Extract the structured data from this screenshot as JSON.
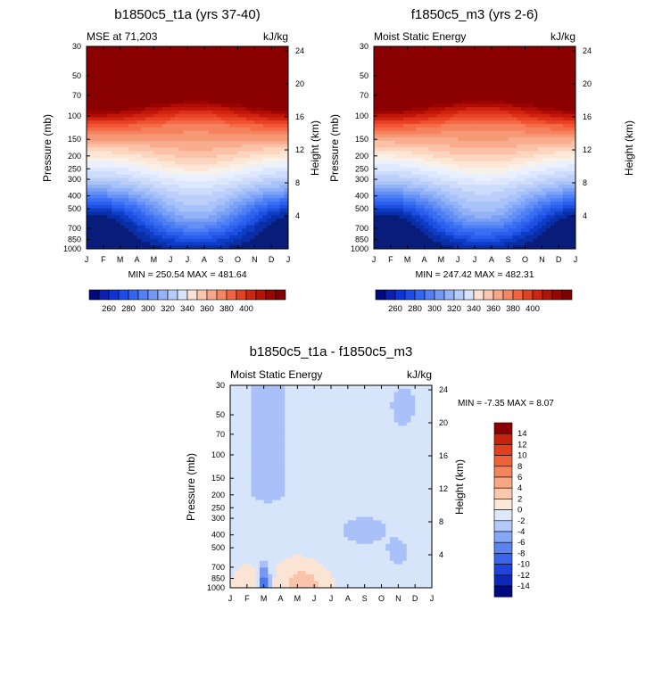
{
  "chart_data": [
    {
      "type": "contour",
      "title": "b1850c5_t1a (yrs 37-40)",
      "left_label": "MSE at 71,203",
      "units": "kJ/kg",
      "ylabel": "Pressure (mb)",
      "y2label": "Height (km)",
      "x_ticks": [
        "J",
        "F",
        "M",
        "A",
        "M",
        "J",
        "J",
        "A",
        "S",
        "O",
        "N",
        "D",
        "J"
      ],
      "pressure_ticks": [
        30,
        50,
        70,
        100,
        150,
        200,
        250,
        300,
        400,
        500,
        700,
        850,
        1000
      ],
      "height_ticks": [
        4,
        8,
        12,
        16,
        20,
        24
      ],
      "stats": "MIN = 250.54 MAX = 481.64",
      "colorbar_labels": [
        "260",
        "280",
        "300",
        "320",
        "340",
        "360",
        "380",
        "400"
      ],
      "levels": [
        255,
        260,
        265,
        270,
        275,
        280,
        285,
        290,
        295,
        300,
        305,
        310,
        315,
        320,
        325,
        330,
        335,
        340,
        345,
        350,
        355,
        360,
        365,
        370,
        375,
        380,
        385,
        390,
        395,
        400,
        405
      ],
      "min": 250.54,
      "max": 481.64
    },
    {
      "type": "contour",
      "title": "f1850c5_m3 (yrs 2-6)",
      "left_label": "Moist Static Energy",
      "units": "kJ/kg",
      "ylabel": "Pressure (mb)",
      "y2label": "Height (km)",
      "x_ticks": [
        "J",
        "F",
        "M",
        "A",
        "M",
        "J",
        "J",
        "A",
        "S",
        "O",
        "N",
        "D",
        "J"
      ],
      "pressure_ticks": [
        30,
        50,
        70,
        100,
        150,
        200,
        250,
        300,
        400,
        500,
        700,
        850,
        1000
      ],
      "height_ticks": [
        4,
        8,
        12,
        16,
        20,
        24
      ],
      "stats": "MIN = 247.42 MAX = 482.31",
      "colorbar_labels": [
        "260",
        "280",
        "300",
        "320",
        "340",
        "360",
        "380",
        "400"
      ],
      "levels": [
        255,
        260,
        265,
        270,
        275,
        280,
        285,
        290,
        295,
        300,
        305,
        310,
        315,
        320,
        325,
        330,
        335,
        340,
        345,
        350,
        355,
        360,
        365,
        370,
        375,
        380,
        385,
        390,
        395,
        400,
        405
      ],
      "min": 247.42,
      "max": 482.31
    },
    {
      "type": "contour",
      "title": "b1850c5_t1a - f1850c5_m3",
      "left_label": "Moist Static Energy",
      "units": "kJ/kg",
      "ylabel": "Pressure (mb)",
      "y2label": "Height (km)",
      "x_ticks": [
        "J",
        "F",
        "M",
        "A",
        "M",
        "J",
        "J",
        "A",
        "S",
        "O",
        "N",
        "D",
        "J"
      ],
      "pressure_ticks": [
        30,
        50,
        70,
        100,
        150,
        200,
        250,
        300,
        400,
        500,
        700,
        850,
        1000
      ],
      "height_ticks": [
        4,
        8,
        12,
        16,
        20,
        24
      ],
      "stats": "MIN =  -7.35 MAX =   8.07",
      "colorbar_labels": [
        "14",
        "12",
        "10",
        "8",
        "6",
        "4",
        "2",
        "0",
        "-2",
        "-4",
        "-6",
        "-8",
        "-10",
        "-12",
        "-14"
      ],
      "min": -7.35,
      "max": 8.07
    }
  ]
}
